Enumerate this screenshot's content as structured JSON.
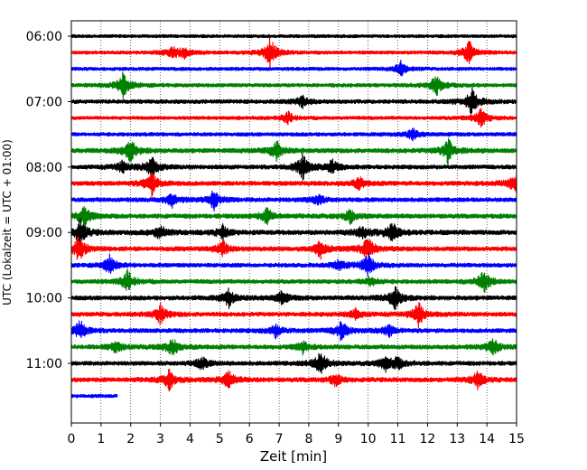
{
  "chart_data": {
    "type": "line",
    "xlabel": "Zeit  [min]",
    "ylabel": "UTC (Lokalzeit = UTC + 01:00)",
    "xlim": [
      0,
      15
    ],
    "x_ticks": [
      0,
      1,
      2,
      3,
      4,
      5,
      6,
      7,
      8,
      9,
      10,
      11,
      12,
      13,
      14,
      15
    ],
    "x_grid": "dotted",
    "y_ticks": [
      "06:00",
      "07:00",
      "08:00",
      "09:00",
      "10:00",
      "11:00"
    ],
    "trace_interval_minutes": 15,
    "trace_colors": [
      "#000000",
      "#ff0000",
      "#0000ff",
      "#008000"
    ],
    "traces": [
      {
        "start": "06:00",
        "color": "#000000",
        "xmax": 15,
        "events": [],
        "noise": 0.25
      },
      {
        "start": "06:15",
        "color": "#ff0000",
        "xmax": 15,
        "events": [
          [
            3.4,
            0.6
          ],
          [
            3.8,
            0.5
          ],
          [
            6.7,
            1.6
          ],
          [
            13.4,
            1.2
          ]
        ],
        "noise": 0.3
      },
      {
        "start": "06:30",
        "color": "#0000ff",
        "xmax": 15,
        "events": [
          [
            11.1,
            0.7
          ]
        ],
        "noise": 0.3
      },
      {
        "start": "06:45",
        "color": "#008000",
        "xmax": 15,
        "events": [
          [
            1.75,
            1.3
          ],
          [
            12.3,
            1.1
          ]
        ],
        "noise": 0.35
      },
      {
        "start": "07:00",
        "color": "#000000",
        "xmax": 15,
        "events": [
          [
            7.8,
            0.6
          ],
          [
            13.5,
            1.4
          ]
        ],
        "noise": 0.45
      },
      {
        "start": "07:15",
        "color": "#ff0000",
        "xmax": 15,
        "events": [
          [
            7.3,
            0.6
          ],
          [
            13.8,
            1.0
          ]
        ],
        "noise": 0.3
      },
      {
        "start": "07:30",
        "color": "#0000ff",
        "xmax": 15,
        "events": [
          [
            11.5,
            0.6
          ]
        ],
        "noise": 0.4
      },
      {
        "start": "07:45",
        "color": "#008000",
        "xmax": 15,
        "events": [
          [
            2.0,
            1.2
          ],
          [
            6.9,
            1.0
          ],
          [
            12.7,
            1.3
          ]
        ],
        "noise": 0.55
      },
      {
        "start": "08:00",
        "color": "#000000",
        "xmax": 15,
        "events": [
          [
            1.7,
            0.6
          ],
          [
            2.7,
            1.1
          ],
          [
            7.8,
            1.3
          ],
          [
            8.8,
            0.7
          ]
        ],
        "noise": 0.5
      },
      {
        "start": "08:15",
        "color": "#ff0000",
        "xmax": 15,
        "events": [
          [
            2.7,
            1.3
          ],
          [
            9.7,
            0.6
          ],
          [
            15.0,
            1.3
          ]
        ],
        "noise": 0.55
      },
      {
        "start": "08:30",
        "color": "#0000ff",
        "xmax": 15,
        "events": [
          [
            3.4,
            0.7
          ],
          [
            4.8,
            1.0
          ],
          [
            8.3,
            0.6
          ]
        ],
        "noise": 0.5
      },
      {
        "start": "08:45",
        "color": "#008000",
        "xmax": 15,
        "events": [
          [
            0.45,
            1.1
          ],
          [
            6.6,
            0.8
          ],
          [
            9.4,
            0.7
          ]
        ],
        "noise": 0.55
      },
      {
        "start": "09:00",
        "color": "#000000",
        "xmax": 15,
        "events": [
          [
            0.3,
            1.4
          ],
          [
            3.0,
            0.8
          ],
          [
            5.1,
            0.7
          ],
          [
            9.8,
            0.7
          ],
          [
            10.8,
            1.1
          ]
        ],
        "noise": 0.6
      },
      {
        "start": "09:15",
        "color": "#ff0000",
        "xmax": 15,
        "events": [
          [
            0.25,
            1.4
          ],
          [
            5.1,
            0.8
          ],
          [
            8.4,
            0.9
          ],
          [
            10.0,
            1.3
          ]
        ],
        "noise": 0.55
      },
      {
        "start": "09:30",
        "color": "#0000ff",
        "xmax": 15,
        "events": [
          [
            1.3,
            1.0
          ],
          [
            9.0,
            0.6
          ],
          [
            10.0,
            1.2
          ]
        ],
        "noise": 0.45
      },
      {
        "start": "09:45",
        "color": "#008000",
        "xmax": 15,
        "events": [
          [
            1.9,
            1.1
          ],
          [
            10.1,
            0.6
          ],
          [
            13.9,
            1.3
          ]
        ],
        "noise": 0.45
      },
      {
        "start": "10:00",
        "color": "#000000",
        "xmax": 15,
        "events": [
          [
            5.3,
            0.9
          ],
          [
            7.1,
            0.7
          ],
          [
            10.9,
            1.2
          ]
        ],
        "noise": 0.55
      },
      {
        "start": "10:15",
        "color": "#ff0000",
        "xmax": 15,
        "events": [
          [
            3.0,
            1.0
          ],
          [
            9.6,
            0.6
          ],
          [
            11.7,
            1.2
          ]
        ],
        "noise": 0.5
      },
      {
        "start": "10:30",
        "color": "#0000ff",
        "xmax": 15,
        "events": [
          [
            0.3,
            1.1
          ],
          [
            6.9,
            0.7
          ],
          [
            9.1,
            1.0
          ],
          [
            10.7,
            0.6
          ]
        ],
        "noise": 0.5
      },
      {
        "start": "10:45",
        "color": "#008000",
        "xmax": 15,
        "events": [
          [
            1.5,
            0.6
          ],
          [
            3.4,
            1.0
          ],
          [
            7.8,
            0.6
          ],
          [
            14.2,
            1.0
          ]
        ],
        "noise": 0.5
      },
      {
        "start": "11:00",
        "color": "#000000",
        "xmax": 15,
        "events": [
          [
            4.4,
            0.7
          ],
          [
            8.4,
            1.3
          ],
          [
            10.6,
            0.7
          ],
          [
            11.0,
            0.6
          ]
        ],
        "noise": 0.5
      },
      {
        "start": "11:15",
        "color": "#ff0000",
        "xmax": 15,
        "events": [
          [
            3.3,
            1.0
          ],
          [
            5.3,
            0.9
          ],
          [
            8.9,
            0.6
          ],
          [
            13.7,
            0.9
          ]
        ],
        "noise": 0.55
      },
      {
        "start": "11:30",
        "color": "#0000ff",
        "xmax": 1.55,
        "events": [],
        "noise": 0.3
      }
    ]
  }
}
